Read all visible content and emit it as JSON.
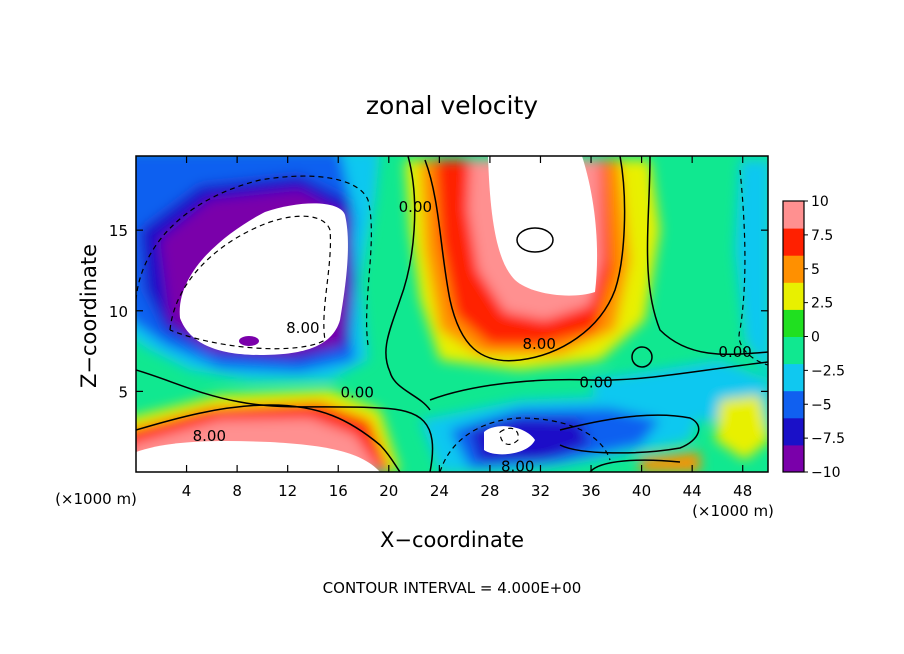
{
  "chart_data": {
    "type": "heatmap",
    "title": "zonal velocity",
    "xlabel": "X−coordinate",
    "ylabel": "Z−coordinate",
    "x_unit_label": "(×1000 m)",
    "y_unit_label": "(×1000 m)",
    "xlim": [
      0,
      50
    ],
    "ylim": [
      0,
      19.6
    ],
    "x_ticks": [
      "4",
      "8",
      "12",
      "16",
      "20",
      "24",
      "28",
      "32",
      "36",
      "40",
      "44",
      "48"
    ],
    "y_ticks": [
      "5",
      "10",
      "15"
    ],
    "colorbar": {
      "range": [
        -10,
        10
      ],
      "labels": [
        "10",
        "7.5",
        "5",
        "2.5",
        "0",
        "−2.5",
        "−5",
        "−7.5",
        "−10"
      ],
      "levels": [
        -10,
        -7.5,
        -5,
        -2.5,
        0,
        2.5,
        5,
        7.5,
        10
      ],
      "colors": [
        "#7a00aa",
        "#1a10c8",
        "#1060f0",
        "#10c8f0",
        "#10e890",
        "#20e020",
        "#e8f000",
        "#ff9000",
        "#ff2000",
        "#ff9090"
      ]
    },
    "contour_labels": [
      {
        "text": "0.00",
        "x": 17.5,
        "y": 5.0
      },
      {
        "text": "8.00",
        "x": 5.8,
        "y": 2.3
      },
      {
        "text": "8.00",
        "x": 13.2,
        "y": 9.0
      },
      {
        "text": "0.00",
        "x": 22.1,
        "y": 16.5
      },
      {
        "text": "8.00",
        "x": 31.9,
        "y": 8.0
      },
      {
        "text": "0.00",
        "x": 36.4,
        "y": 5.6
      },
      {
        "text": "0.00",
        "x": 47.4,
        "y": 7.5
      },
      {
        "text": "8.00",
        "x": 30.2,
        "y": 0.4
      }
    ],
    "footnote": "CONTOUR INTERVAL = 4.000E+00",
    "grid": false,
    "legend": "right"
  }
}
